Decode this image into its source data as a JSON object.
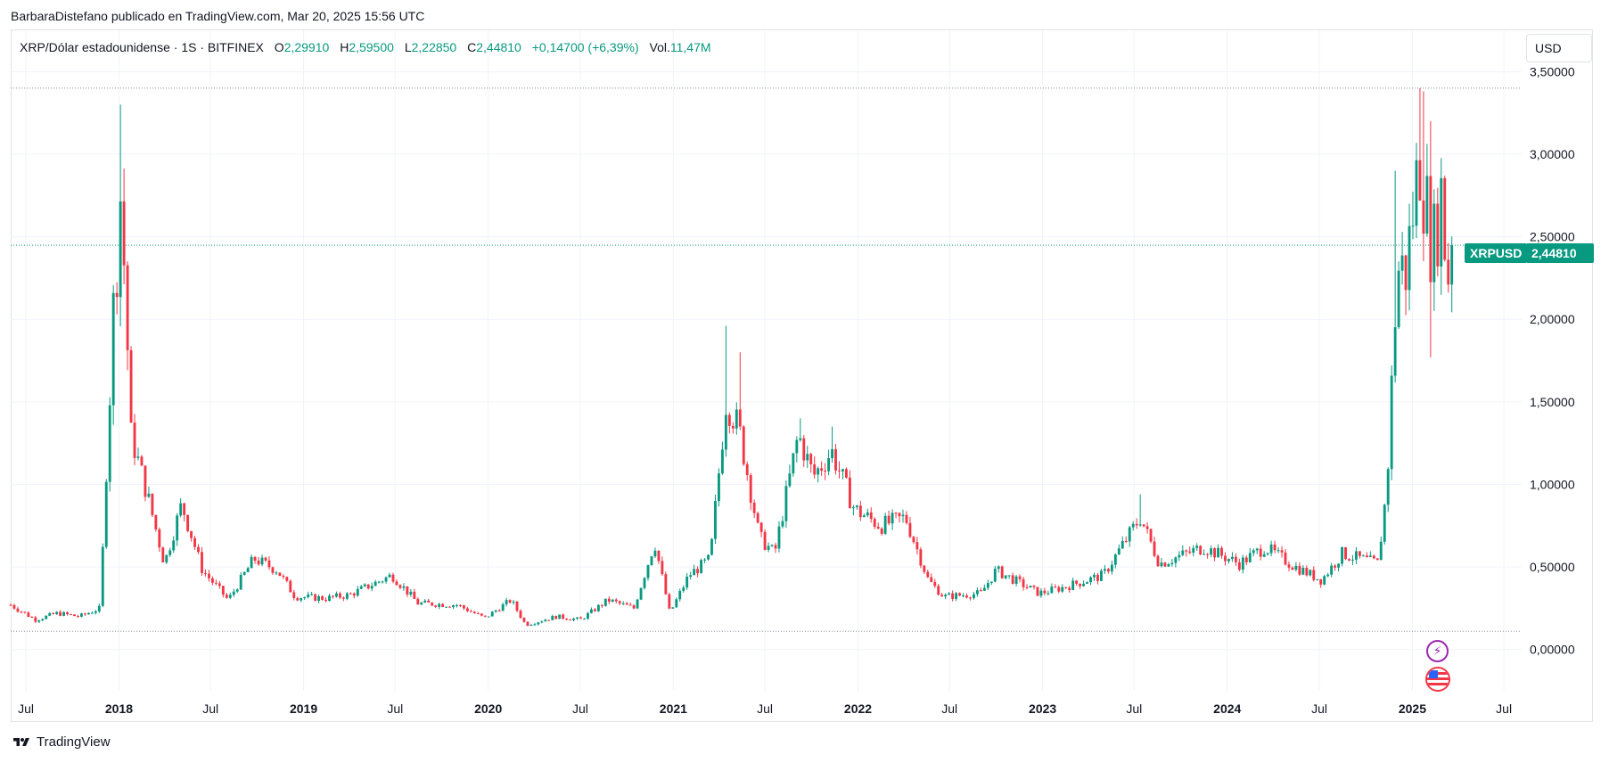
{
  "publisher_line": "BarbaraDistefano publicado en TradingView.com, Mar 20, 2025 15:56 UTC",
  "legend": {
    "symbol": "XRP/Dólar estadounidense · 1S · BITFINEX",
    "open_label": "O",
    "open": "2,29910",
    "high_label": "H",
    "high": "2,59500",
    "low_label": "L",
    "low": "2,22850",
    "close_label": "C",
    "close": "2,44810",
    "change": "+0,14700 (+6,39%)",
    "vol_label": "Vol.",
    "vol": "11,47M"
  },
  "currency_button": "USD",
  "price_tag": {
    "symbol": "XRPUSD",
    "price": "2,44810"
  },
  "branding": {
    "logo_text": "TradingView"
  },
  "colors": {
    "up": "#089981",
    "down": "#f23645",
    "grid": "#f0f3fa",
    "text": "#131722"
  },
  "events": {
    "bolt_icon": "lightning-icon",
    "flag_icon": "us-flag-icon"
  },
  "chart_data": {
    "type": "candlestick",
    "y_axis": {
      "ticks": [
        0,
        0.5,
        1.0,
        1.5,
        2.0,
        2.5,
        3.0,
        3.5
      ],
      "tick_labels": [
        "0,00000",
        "0,50000",
        "1,00000",
        "1,50000",
        "2,00000",
        "2,50000",
        "3,00000",
        "3,50000"
      ],
      "range": [
        -0.25,
        3.75
      ]
    },
    "x_axis": {
      "range": [
        "2017-06-01",
        "2025-08-05"
      ],
      "ticks": [
        {
          "date": "2017-07-01",
          "label": "Jul",
          "bold": false
        },
        {
          "date": "2018-01-01",
          "label": "2018",
          "bold": true
        },
        {
          "date": "2018-07-01",
          "label": "Jul",
          "bold": false
        },
        {
          "date": "2019-01-01",
          "label": "2019",
          "bold": true
        },
        {
          "date": "2019-07-01",
          "label": "Jul",
          "bold": false
        },
        {
          "date": "2020-01-01",
          "label": "2020",
          "bold": true
        },
        {
          "date": "2020-07-01",
          "label": "Jul",
          "bold": false
        },
        {
          "date": "2021-01-01",
          "label": "2021",
          "bold": true
        },
        {
          "date": "2021-07-01",
          "label": "Jul",
          "bold": false
        },
        {
          "date": "2022-01-01",
          "label": "2022",
          "bold": true
        },
        {
          "date": "2022-07-01",
          "label": "Jul",
          "bold": false
        },
        {
          "date": "2023-01-01",
          "label": "2023",
          "bold": true
        },
        {
          "date": "2023-07-01",
          "label": "Jul",
          "bold": false
        },
        {
          "date": "2024-01-01",
          "label": "2024",
          "bold": true
        },
        {
          "date": "2024-07-01",
          "label": "Jul",
          "bold": false
        },
        {
          "date": "2025-01-01",
          "label": "2025",
          "bold": true
        },
        {
          "date": "2025-07-01",
          "label": "Jul",
          "bold": false
        }
      ]
    },
    "reference_lines": [
      {
        "value": 3.4,
        "style": "dotted"
      },
      {
        "value": 2.4481,
        "style": "dotted-accent"
      },
      {
        "value": 0.11,
        "style": "dotted"
      }
    ],
    "anchors": [
      [
        "2017-06-01",
        0.27
      ],
      [
        "2017-07-20",
        0.18
      ],
      [
        "2017-09-01",
        0.22
      ],
      [
        "2017-10-15",
        0.2
      ],
      [
        "2017-11-25",
        0.25
      ],
      [
        "2017-12-20",
        2.0
      ],
      [
        "2018-01-05",
        2.8
      ],
      [
        "2018-01-25",
        1.3
      ],
      [
        "2018-02-25",
        0.95
      ],
      [
        "2018-04-01",
        0.52
      ],
      [
        "2018-05-05",
        0.88
      ],
      [
        "2018-06-15",
        0.48
      ],
      [
        "2018-08-05",
        0.3
      ],
      [
        "2018-09-25",
        0.55
      ],
      [
        "2018-11-10",
        0.48
      ],
      [
        "2018-12-15",
        0.32
      ],
      [
        "2019-02-15",
        0.31
      ],
      [
        "2019-04-01",
        0.33
      ],
      [
        "2019-06-25",
        0.45
      ],
      [
        "2019-08-15",
        0.28
      ],
      [
        "2019-11-01",
        0.27
      ],
      [
        "2019-12-25",
        0.19
      ],
      [
        "2020-02-15",
        0.3
      ],
      [
        "2020-03-15",
        0.15
      ],
      [
        "2020-05-15",
        0.2
      ],
      [
        "2020-07-01",
        0.18
      ],
      [
        "2020-08-25",
        0.3
      ],
      [
        "2020-10-15",
        0.25
      ],
      [
        "2020-11-25",
        0.65
      ],
      [
        "2020-12-25",
        0.22
      ],
      [
        "2021-02-01",
        0.45
      ],
      [
        "2021-03-15",
        0.55
      ],
      [
        "2021-04-15",
        1.5
      ],
      [
        "2021-05-10",
        1.35
      ],
      [
        "2021-06-20",
        0.68
      ],
      [
        "2021-07-20",
        0.58
      ],
      [
        "2021-09-05",
        1.3
      ],
      [
        "2021-10-05",
        1.05
      ],
      [
        "2021-11-10",
        1.2
      ],
      [
        "2021-12-25",
        0.85
      ],
      [
        "2022-02-15",
        0.75
      ],
      [
        "2022-04-05",
        0.8
      ],
      [
        "2022-05-20",
        0.42
      ],
      [
        "2022-06-20",
        0.32
      ],
      [
        "2022-09-01",
        0.34
      ],
      [
        "2022-10-01",
        0.48
      ],
      [
        "2022-12-25",
        0.34
      ],
      [
        "2023-02-15",
        0.38
      ],
      [
        "2023-05-01",
        0.45
      ],
      [
        "2023-07-13",
        0.8
      ],
      [
        "2023-08-20",
        0.52
      ],
      [
        "2023-11-15",
        0.62
      ],
      [
        "2024-01-25",
        0.52
      ],
      [
        "2024-03-15",
        0.62
      ],
      [
        "2024-05-15",
        0.5
      ],
      [
        "2024-07-05",
        0.42
      ],
      [
        "2024-08-15",
        0.58
      ],
      [
        "2024-10-25",
        0.52
      ],
      [
        "2024-11-12",
        1.0
      ],
      [
        "2024-12-02",
        2.3
      ],
      [
        "2024-12-20",
        2.3
      ],
      [
        "2025-01-15",
        3.0
      ],
      [
        "2025-02-10",
        2.4
      ],
      [
        "2025-03-01",
        2.8
      ],
      [
        "2025-03-10",
        2.2
      ],
      [
        "2025-03-20",
        2.4481
      ]
    ],
    "spikes": [
      {
        "date": "2018-01-01",
        "high": 3.3
      },
      {
        "date": "2018-01-08",
        "high": 2.8
      },
      {
        "date": "2021-04-12",
        "high": 1.96
      },
      {
        "date": "2021-05-10",
        "high": 1.8
      },
      {
        "date": "2021-09-06",
        "high": 1.4
      },
      {
        "date": "2021-11-08",
        "high": 1.35
      },
      {
        "date": "2023-07-10",
        "high": 0.94
      },
      {
        "date": "2024-11-25",
        "high": 2.9
      },
      {
        "date": "2025-01-13",
        "high": 3.4
      },
      {
        "date": "2025-01-20",
        "high": 3.38
      },
      {
        "date": "2025-02-03",
        "high": 3.2
      },
      {
        "date": "2025-02-03",
        "low": 1.77
      }
    ]
  }
}
